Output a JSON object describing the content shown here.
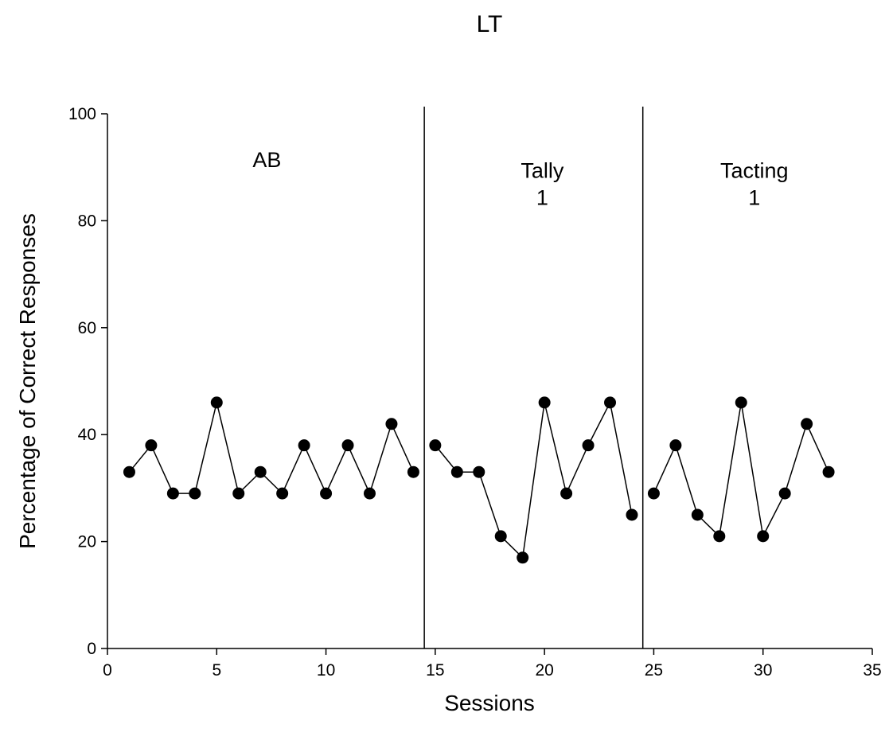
{
  "chart_data": {
    "type": "line",
    "title": "LT",
    "xlabel": "Sessions",
    "ylabel": "Percentage of Correct Responses",
    "xlim": [
      0,
      35
    ],
    "ylim": [
      0,
      100
    ],
    "xticks": [
      0,
      5,
      10,
      15,
      20,
      25,
      30,
      35
    ],
    "yticks": [
      0,
      20,
      40,
      60,
      80,
      100
    ],
    "grid": false,
    "phase_change_lines": [
      14.5,
      24.5
    ],
    "phases": [
      {
        "label_lines": [
          "AB"
        ],
        "label_x": 7.3,
        "label_y": 90
      },
      {
        "label_lines": [
          "Tally",
          "1"
        ],
        "label_x": 19.9,
        "label_y": 88
      },
      {
        "label_lines": [
          "Tacting",
          "1"
        ],
        "label_x": 29.6,
        "label_y": 88
      }
    ],
    "series": [
      {
        "segments": [
          {
            "x": [
              1,
              2,
              3,
              4,
              5,
              6,
              7,
              8,
              9,
              10,
              11,
              12,
              13,
              14
            ],
            "y": [
              33,
              38,
              29,
              29,
              46,
              29,
              33,
              29,
              38,
              29,
              38,
              29,
              42,
              33
            ]
          },
          {
            "x": [
              15,
              16,
              17,
              18,
              19,
              20,
              21,
              22,
              23,
              24
            ],
            "y": [
              38,
              33,
              33,
              21,
              17,
              46,
              29,
              38,
              46,
              25
            ]
          },
          {
            "x": [
              25,
              26,
              27,
              28,
              29,
              30,
              31,
              32,
              33
            ],
            "y": [
              29,
              38,
              25,
              21,
              46,
              21,
              29,
              42,
              33
            ]
          }
        ]
      }
    ],
    "colors": {
      "line": "#000000",
      "marker": "#000000",
      "axis": "#000000"
    }
  }
}
